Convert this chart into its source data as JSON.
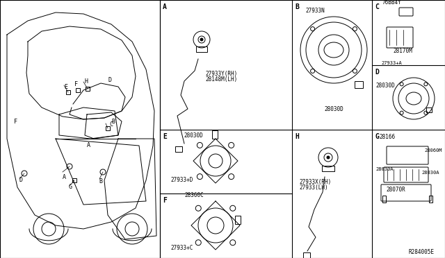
{
  "bg_color": "#ffffff",
  "line_color": "#000000",
  "text_color": "#000000",
  "fig_width": 6.4,
  "fig_height": 3.72,
  "dpi": 100,
  "ref_code": "R284005E",
  "sections": {
    "A": {
      "label": "A",
      "parts": [
        "27933Y(RH)",
        "28148M(LH)"
      ]
    },
    "B": {
      "label": "B",
      "parts": [
        "27933N",
        "28030D"
      ]
    },
    "C": {
      "label": "C",
      "parts": [
        "76BB4Y",
        "28170M"
      ]
    },
    "D": {
      "label": "D",
      "parts": [
        "27933+A",
        "28030D"
      ]
    },
    "E": {
      "label": "E",
      "parts": [
        "28030D",
        "27933+D"
      ]
    },
    "F": {
      "label": "F",
      "parts": [
        "28360C",
        "27933+C"
      ]
    },
    "H": {
      "label": "H",
      "parts": [
        "27933X(RH)",
        "27933(LH)"
      ]
    },
    "G": {
      "label": "G",
      "parts": [
        "28166",
        "28060M",
        "28030A",
        "28030A",
        "28070R"
      ]
    }
  }
}
